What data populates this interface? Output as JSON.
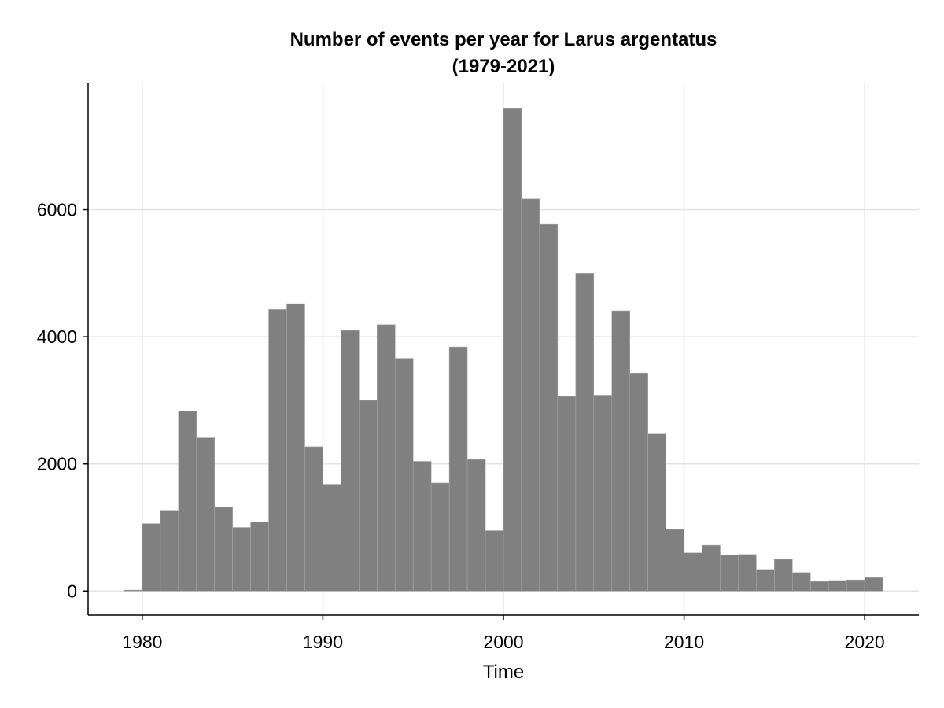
{
  "chart_data": {
    "type": "bar",
    "title": "Number of events per year for Larus argentatus",
    "subtitle": "(1979-2021)",
    "xlabel": "Time",
    "ylabel": "",
    "bin_width": 1,
    "x": [
      1979,
      1980,
      1981,
      1982,
      1983,
      1984,
      1985,
      1986,
      1987,
      1988,
      1989,
      1990,
      1991,
      1992,
      1993,
      1994,
      1995,
      1996,
      1997,
      1998,
      1999,
      2000,
      2001,
      2002,
      2003,
      2004,
      2005,
      2006,
      2007,
      2008,
      2009,
      2010,
      2011,
      2012,
      2013,
      2014,
      2015,
      2016,
      2017,
      2018,
      2019,
      2020
    ],
    "values": [
      15,
      1060,
      1270,
      2830,
      2410,
      1320,
      1000,
      1090,
      4430,
      4520,
      2270,
      1680,
      4100,
      3000,
      4190,
      3660,
      2040,
      1700,
      3840,
      2070,
      950,
      7600,
      6170,
      5770,
      3060,
      5000,
      3080,
      4410,
      3430,
      2470,
      970,
      600,
      720,
      570,
      575,
      340,
      500,
      290,
      150,
      165,
      175,
      210
    ],
    "xlim": [
      1977,
      2023
    ],
    "ylim": [
      -380,
      8000
    ],
    "x_ticks": [
      1980,
      1990,
      2000,
      2010,
      2020
    ],
    "y_ticks": [
      0,
      2000,
      4000,
      6000
    ],
    "grid": true,
    "bar_color": "#808080",
    "bar_edge_color": "#a6a6a6",
    "grid_color": "#e3e3e3",
    "axis_color": "#000000",
    "legend": "none"
  }
}
